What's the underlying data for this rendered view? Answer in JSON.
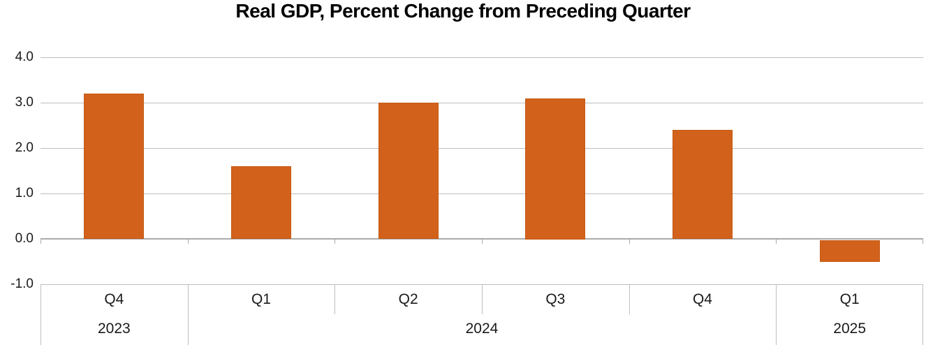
{
  "chart_data": {
    "type": "bar",
    "title": "Real GDP, Percent Change from Preceding Quarter",
    "categories": [
      "Q4",
      "Q1",
      "Q2",
      "Q3",
      "Q4",
      "Q1"
    ],
    "values": [
      3.2,
      1.6,
      3.0,
      3.1,
      2.4,
      -0.5
    ],
    "year_groups": [
      {
        "label": "2023",
        "span": 1
      },
      {
        "label": "2024",
        "span": 4
      },
      {
        "label": "2025",
        "span": 1
      }
    ],
    "yticks": [
      {
        "label": "4.0",
        "value": 4
      },
      {
        "label": "3.0",
        "value": 3
      },
      {
        "label": "2.0",
        "value": 2
      },
      {
        "label": "1.0",
        "value": 1
      },
      {
        "label": "0.0",
        "value": 0
      },
      {
        "label": "-1.0",
        "value": -1
      }
    ],
    "ylim": [
      -1,
      4
    ],
    "xlabel": "",
    "ylabel": "",
    "legend": "none",
    "grid": true,
    "bar_color": "#d2611c",
    "gridline_color": "#bdbdbd",
    "axis_line_color": "#aaaaaa",
    "table_line_color": "#bfbfbf",
    "text_color": "#1a1a1a"
  }
}
